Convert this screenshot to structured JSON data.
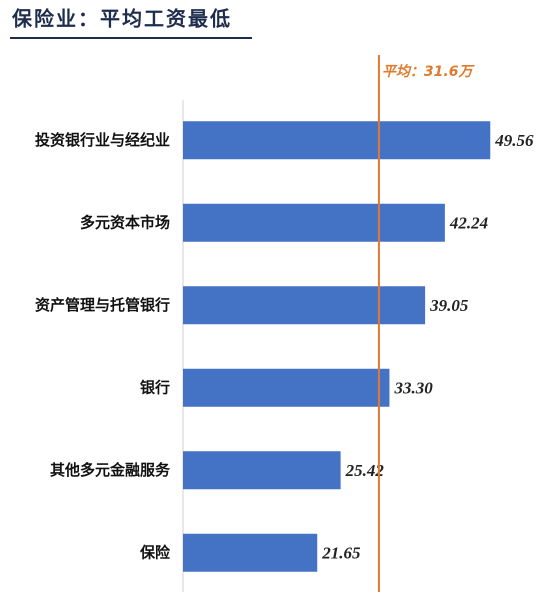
{
  "chart_data": {
    "type": "hbar",
    "title": "保险业：平均工资最低",
    "categories": [
      "投资银行业与经纪业",
      "多元资本市场",
      "资产管理与托管银行",
      "银行",
      "其他多元金融服务",
      "保险"
    ],
    "values": [
      49.56,
      42.24,
      39.05,
      33.3,
      25.42,
      21.65
    ],
    "value_labels": [
      "49.56",
      "42.24",
      "39.05",
      "33.30",
      "25.42",
      "21.65"
    ],
    "color": "#4472c4",
    "average": {
      "value": 31.6,
      "label": "平均：31.6万",
      "color": "#e07b2e"
    }
  }
}
